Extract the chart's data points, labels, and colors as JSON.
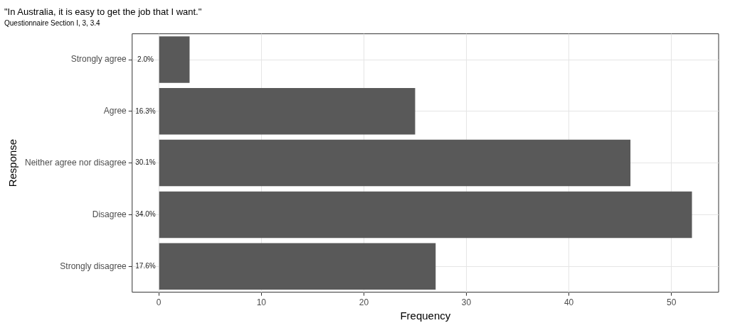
{
  "chart_data": {
    "type": "bar",
    "orientation": "horizontal",
    "title": "\"In Australia, it is easy to get the job that I want.\"",
    "subtitle": "Questionnaire Section I, 3, 3.4",
    "xlabel": "Frequency",
    "ylabel": "Response",
    "categories": [
      "Strongly agree",
      "Agree",
      "Neither agree nor disagree",
      "Disagree",
      "Strongly disagree"
    ],
    "values": [
      3,
      25,
      46,
      52,
      27
    ],
    "annotations": [
      "2.0%",
      "16.3%",
      "30.1%",
      "34.0%",
      "17.6%"
    ],
    "color": "#595959",
    "xlim": [
      -2.6,
      54.6
    ],
    "xticks": [
      0,
      10,
      20,
      30,
      40,
      50
    ],
    "grid": true,
    "legend": false
  }
}
